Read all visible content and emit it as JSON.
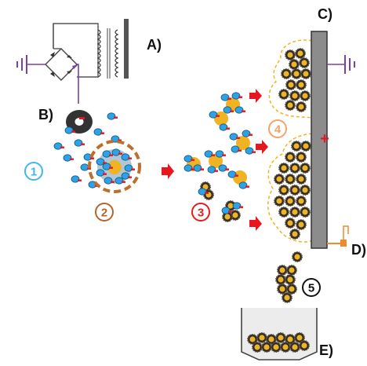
{
  "labels": {
    "a": "A)",
    "b": "B)",
    "c": "C)",
    "d": "D)",
    "e": "E)"
  },
  "steps": [
    {
      "id": "1",
      "text": "1",
      "color": "#3fb8e8"
    },
    {
      "id": "2",
      "text": "2",
      "color": "#b5652a"
    },
    {
      "id": "3",
      "text": "3",
      "color": "#e41e1e"
    },
    {
      "id": "4",
      "text": "4",
      "color": "#f2a36b"
    },
    {
      "id": "5",
      "text": "5",
      "color": "#111111"
    }
  ],
  "electrode_sign": "+",
  "colors": {
    "circuit": "#555555",
    "ground": "#7b3fa8",
    "blue_particle": "#2aa3e8",
    "core": "#f0b323",
    "shell": "#bf6d2a",
    "arrow": "#e8161e",
    "electrode": "#8c8c8c",
    "deposit_outline": "#f0b323",
    "cuvette": "#e6e6e6",
    "orange_probe": "#f08a2c"
  },
  "icons": [
    "ground-icon",
    "diode-bridge-icon",
    "transformer-icon",
    "ring-electrode-icon",
    "plus-sign-icon",
    "arrow-icon"
  ]
}
